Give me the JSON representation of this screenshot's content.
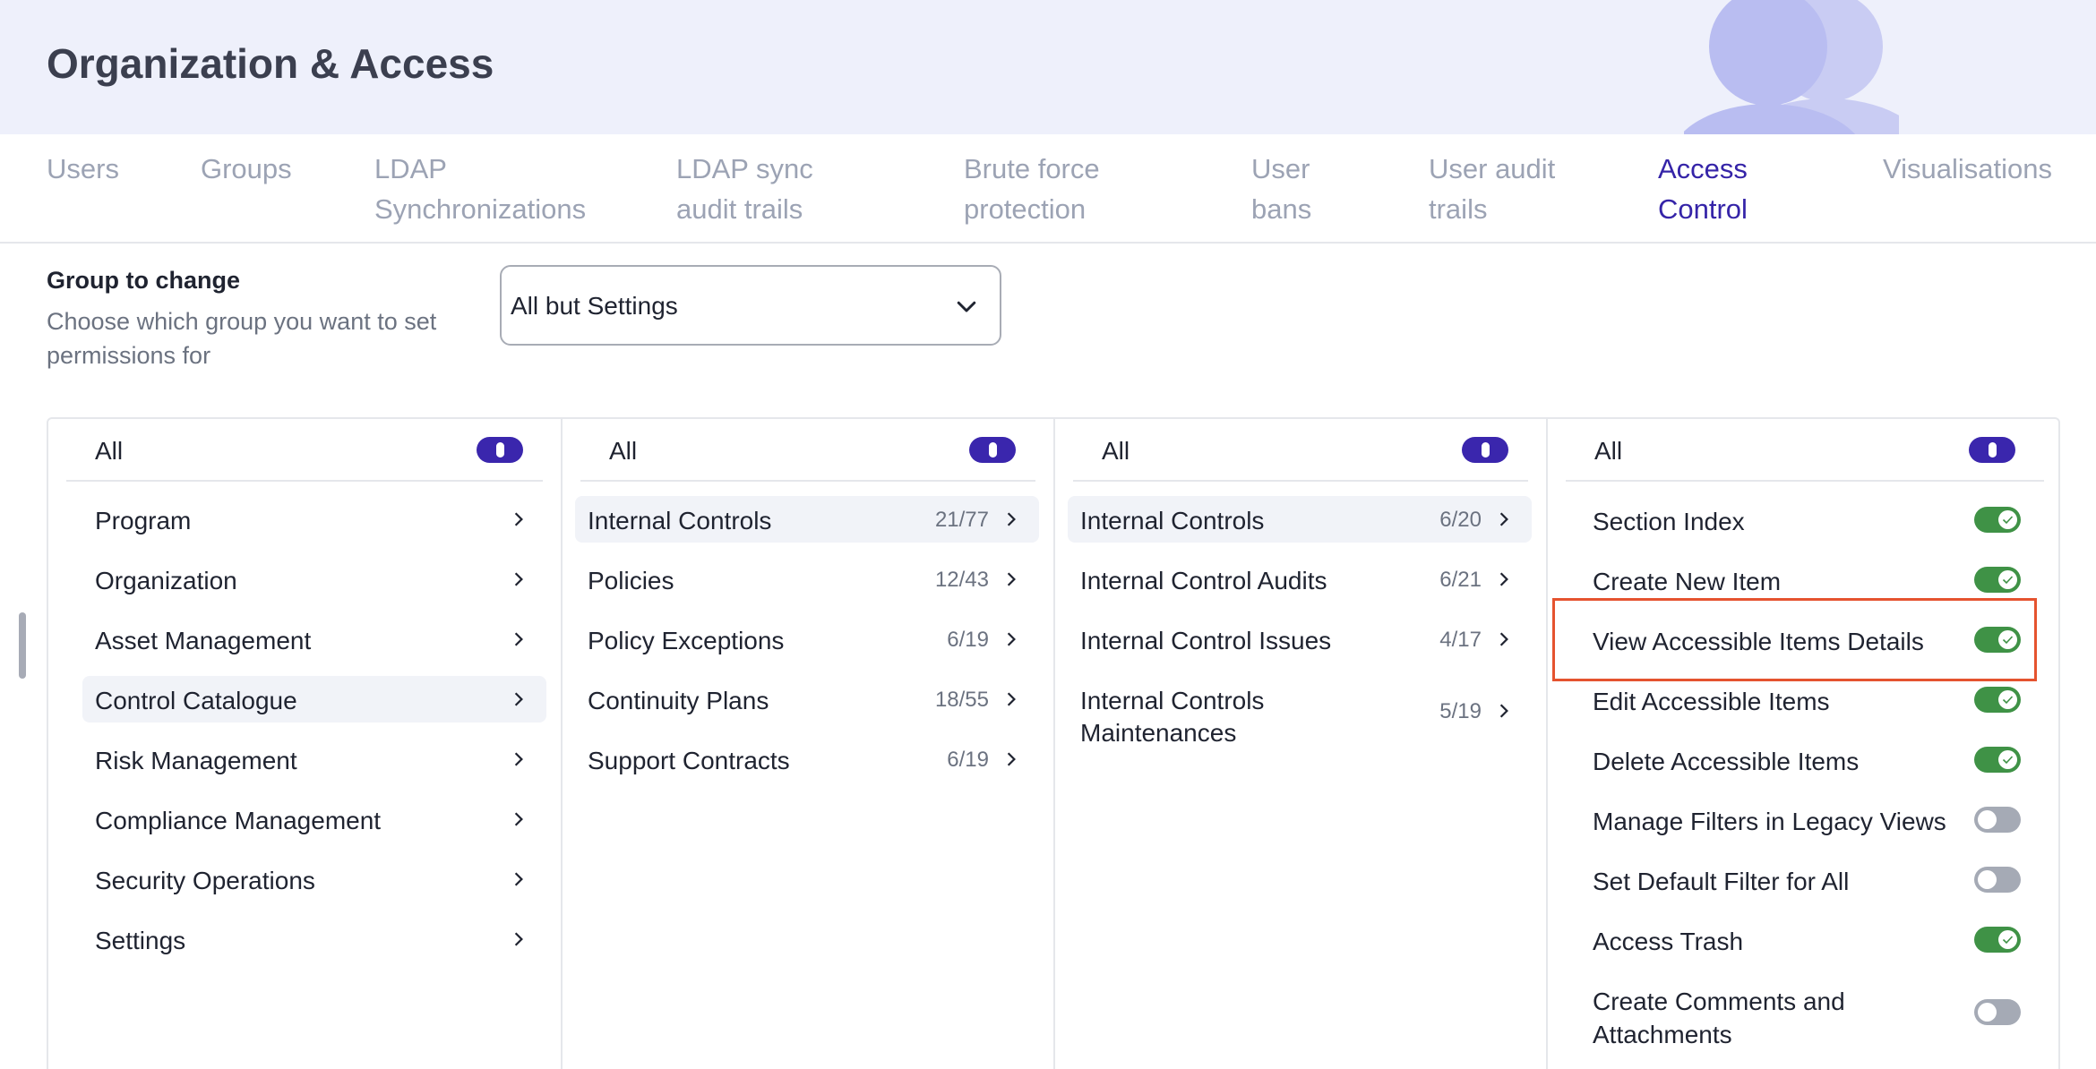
{
  "header": {
    "title": "Organization & Access"
  },
  "tabs": [
    {
      "line1": "Users",
      "line2": ""
    },
    {
      "line1": "Groups",
      "line2": ""
    },
    {
      "line1": "LDAP",
      "line2": "Synchronizations"
    },
    {
      "line1": "LDAP sync",
      "line2": "audit trails"
    },
    {
      "line1": "Brute force",
      "line2": "protection"
    },
    {
      "line1": "User",
      "line2": "bans"
    },
    {
      "line1": "User audit",
      "line2": "trails"
    },
    {
      "line1": "Access",
      "line2": "Control",
      "active": true
    },
    {
      "line1": "Visualisations",
      "line2": ""
    }
  ],
  "group": {
    "label": "Group to change",
    "description": "Choose which group you want to set permissions for",
    "selected": "All but Settings"
  },
  "columns": {
    "all_label": "All",
    "modules": [
      {
        "name": "Program"
      },
      {
        "name": "Organization"
      },
      {
        "name": "Asset Management"
      },
      {
        "name": "Control Catalogue",
        "selected": true
      },
      {
        "name": "Risk Management"
      },
      {
        "name": "Compliance Management"
      },
      {
        "name": "Security Operations"
      },
      {
        "name": "Settings"
      }
    ],
    "categories": [
      {
        "name": "Internal Controls",
        "count": "21/77",
        "selected": true
      },
      {
        "name": "Policies",
        "count": "12/43"
      },
      {
        "name": "Policy Exceptions",
        "count": "6/19"
      },
      {
        "name": "Continuity Plans",
        "count": "18/55"
      },
      {
        "name": "Support Contracts",
        "count": "6/19"
      }
    ],
    "entities": [
      {
        "name": "Internal Controls",
        "count": "6/20",
        "selected": true
      },
      {
        "name": "Internal Control Audits",
        "count": "6/21"
      },
      {
        "name": "Internal Control Issues",
        "count": "4/17"
      },
      {
        "name": "Internal Controls Maintenances",
        "count": "5/19"
      }
    ],
    "permissions": [
      {
        "name": "Section Index",
        "enabled": true
      },
      {
        "name": "Create New Item",
        "enabled": true
      },
      {
        "name": "View Accessible Items Details",
        "enabled": true
      },
      {
        "name": "Edit Accessible Items",
        "enabled": true
      },
      {
        "name": "Delete Accessible Items",
        "enabled": true
      },
      {
        "name": "Manage Filters in Legacy Views",
        "enabled": false
      },
      {
        "name": "Set Default Filter for All",
        "enabled": false
      },
      {
        "name": "Access Trash",
        "enabled": true
      },
      {
        "name": "Create Comments and Attachments",
        "enabled": false
      }
    ]
  },
  "colors": {
    "accent": "#3524a8",
    "toggle_on": "#3f9246",
    "toggle_off": "#a5aab5",
    "highlight": "#e5532f",
    "header_bg": "#eef0fb"
  }
}
